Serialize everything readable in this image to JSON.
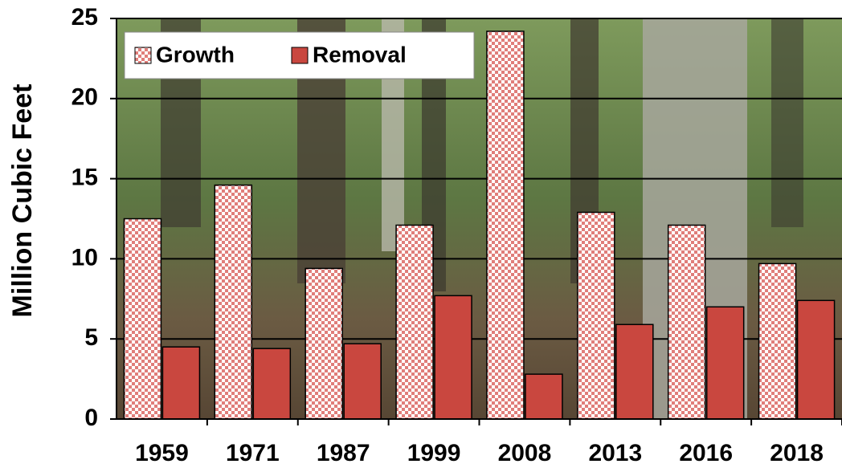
{
  "chart_data": {
    "type": "bar",
    "y_label": "Million Cubic Feet",
    "categories": [
      "1959",
      "1971",
      "1987",
      "1999",
      "2008",
      "2013",
      "2016",
      "2018"
    ],
    "series": [
      {
        "name": "Growth",
        "color": "#e07e7a",
        "values": [
          12.5,
          14.6,
          9.4,
          12.1,
          24.2,
          12.9,
          12.1,
          9.7
        ]
      },
      {
        "name": "Removal",
        "color": "#c9473f",
        "values": [
          4.5,
          4.4,
          4.7,
          7.7,
          2.8,
          5.9,
          7.0,
          7.4
        ]
      }
    ],
    "ylim": [
      0,
      25
    ],
    "yticks": [
      0,
      5,
      10,
      15,
      20,
      25
    ],
    "grid": true,
    "legend": "upper left"
  }
}
